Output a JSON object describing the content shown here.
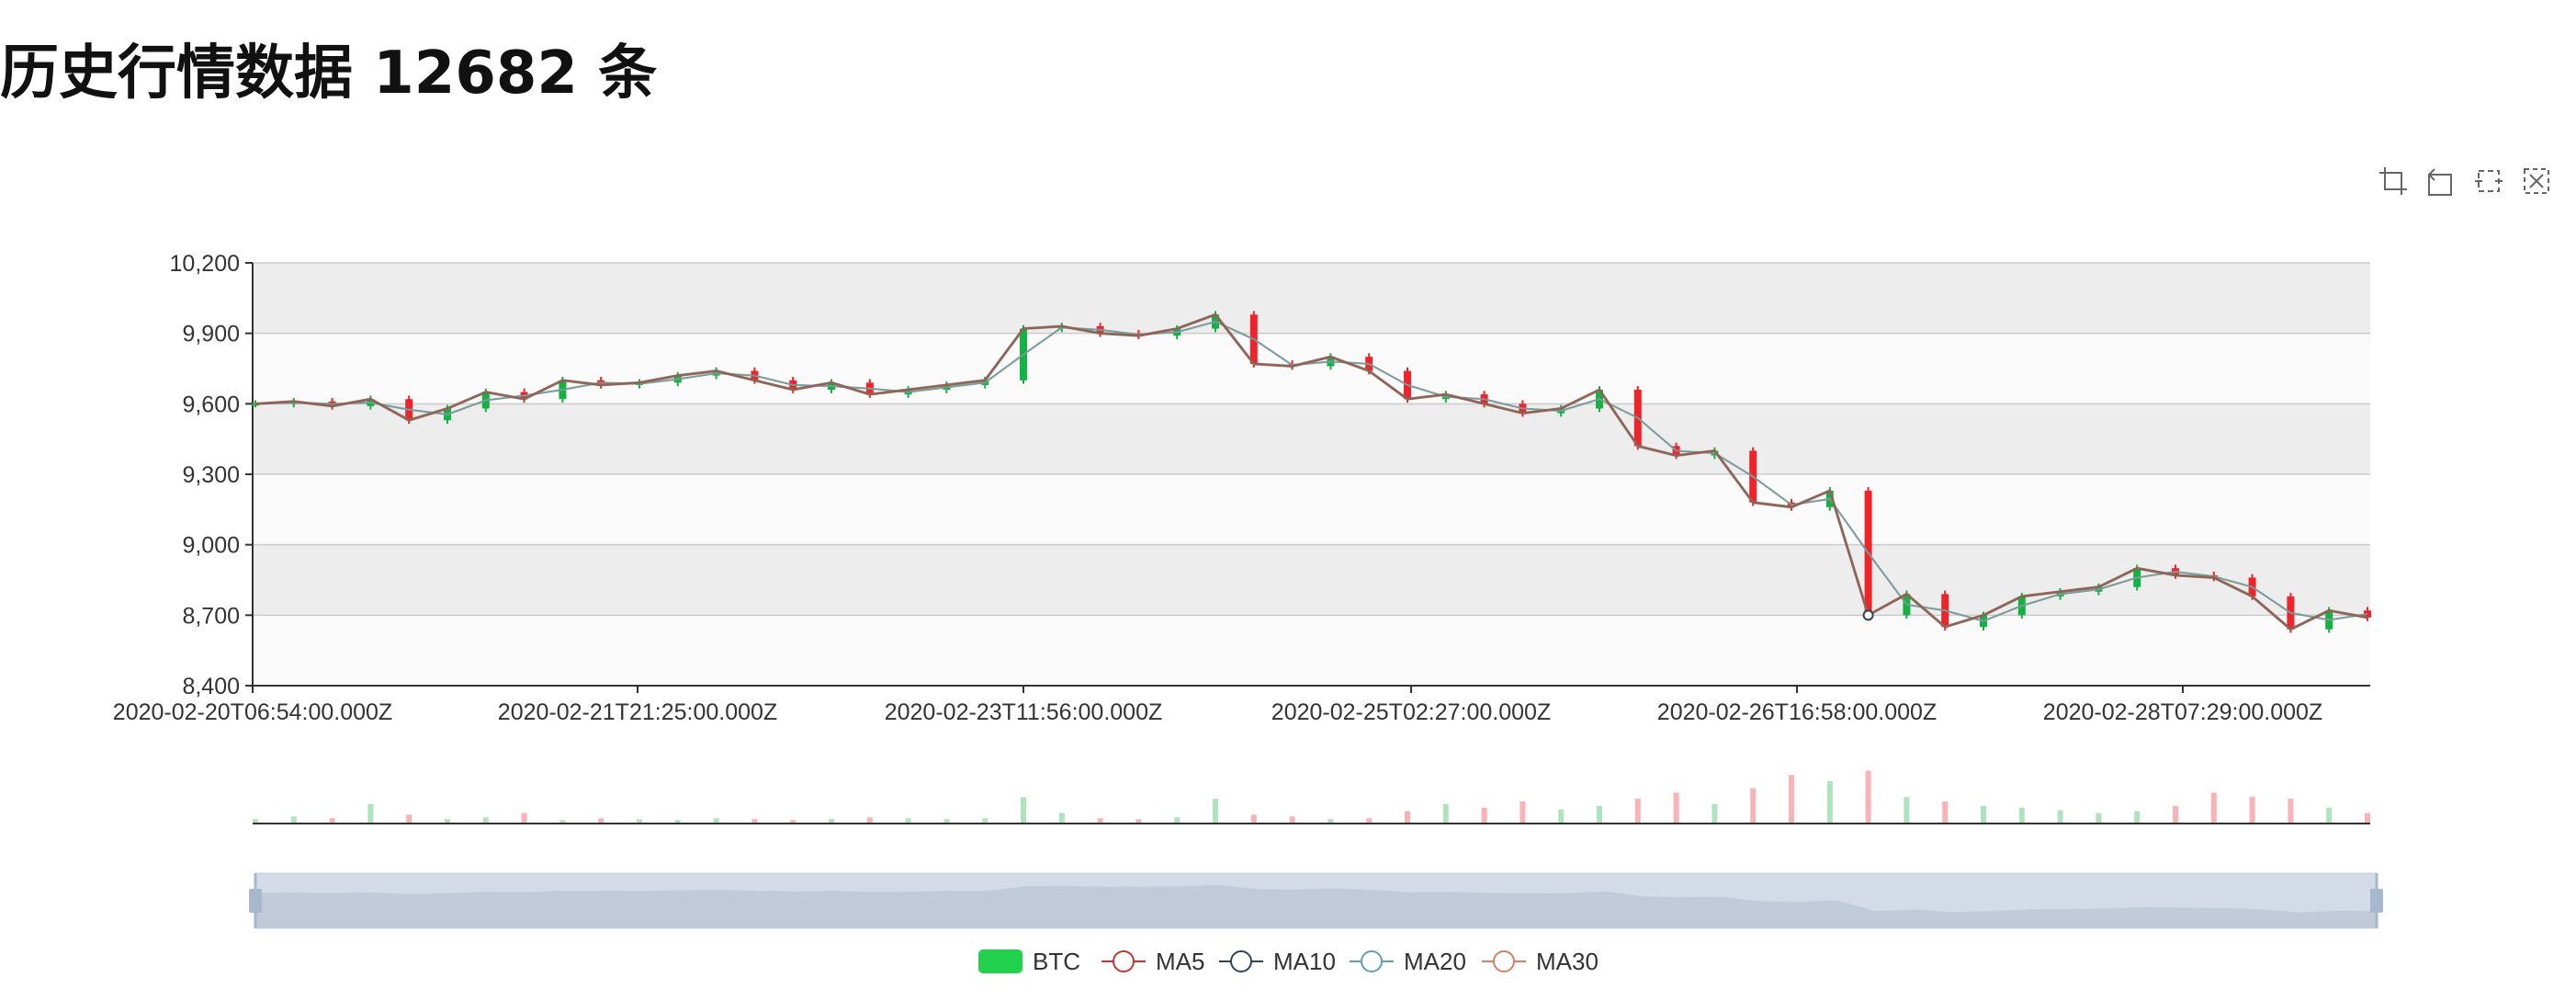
{
  "page": {
    "title": "历史行情数据 12682 条"
  },
  "toolbox": [
    {
      "name": "zoom-icon",
      "tip": "区域缩放"
    },
    {
      "name": "zoom-reset-icon",
      "tip": "区域缩放还原"
    },
    {
      "name": "restore-icon",
      "tip": "还原"
    },
    {
      "name": "brush-clear-icon",
      "tip": "清除选择"
    }
  ],
  "colors": {
    "up": "#14b143",
    "down": "#ef232a",
    "bg_band": "#ededed",
    "bg_band_alt": "#fafafa",
    "grid_line": "#cccccc",
    "price_line": "#8a6a5a",
    "dataZoom_fill": "#d2dbe7",
    "dataZoom_handle": "#a7b7cc",
    "btc_legend": "#22d14d",
    "ma5": "#c23531",
    "ma10": "#2f4554",
    "ma20": "#61a0a8",
    "ma30": "#d48265"
  },
  "chart_data": {
    "type": "candlestick",
    "title": "",
    "ylim": [
      8400,
      10200
    ],
    "yticks": [
      "10,200",
      "9,900",
      "9,600",
      "9,300",
      "9,000",
      "8,700",
      "8,400"
    ],
    "ytick_values": [
      10200,
      9900,
      9600,
      9300,
      9000,
      8700,
      8400
    ],
    "xtick_labels": [
      "2020-02-20T06:54:00.000Z",
      "2020-02-21T21:25:00.000Z",
      "2020-02-23T11:56:00.000Z",
      "2020-02-25T02:27:00.000Z",
      "2020-02-26T16:58:00.000Z",
      "2020-02-28T07:29:00.000Z"
    ],
    "grid": true,
    "legend_position": "bottom-center",
    "legend": [
      "BTC",
      "MA5",
      "MA10",
      "MA20",
      "MA30"
    ],
    "x": [
      "2020-02-20T06:54",
      "2020-02-20T10:00",
      "2020-02-20T14:00",
      "2020-02-20T18:00",
      "2020-02-20T22:00",
      "2020-02-21T02:00",
      "2020-02-21T06:00",
      "2020-02-21T10:00",
      "2020-02-21T14:00",
      "2020-02-21T18:00",
      "2020-02-21T21:25",
      "2020-02-22T02:00",
      "2020-02-22T06:00",
      "2020-02-22T10:00",
      "2020-02-22T14:00",
      "2020-02-22T18:00",
      "2020-02-22T22:00",
      "2020-02-23T02:00",
      "2020-02-23T06:00",
      "2020-02-23T08:30",
      "2020-02-23T11:56",
      "2020-02-23T16:00",
      "2020-02-23T20:00",
      "2020-02-24T00:00",
      "2020-02-24T04:00",
      "2020-02-24T08:00",
      "2020-02-24T12:00",
      "2020-02-24T16:00",
      "2020-02-24T20:00",
      "2020-02-25T00:00",
      "2020-02-25T02:27",
      "2020-02-25T06:00",
      "2020-02-25T10:00",
      "2020-02-25T14:00",
      "2020-02-25T18:00",
      "2020-02-25T22:00",
      "2020-02-26T02:00",
      "2020-02-26T06:00",
      "2020-02-26T10:00",
      "2020-02-26T14:00",
      "2020-02-26T16:58",
      "2020-02-26T20:00",
      "2020-02-27T00:00",
      "2020-02-27T04:00",
      "2020-02-27T08:00",
      "2020-02-27T12:00",
      "2020-02-27T16:00",
      "2020-02-27T20:00",
      "2020-02-28T00:00",
      "2020-02-28T04:00",
      "2020-02-28T07:29",
      "2020-02-28T12:00",
      "2020-02-28T16:00",
      "2020-02-28T20:00",
      "2020-02-29T00:00",
      "2020-02-29T04:00"
    ],
    "close": [
      9600,
      9610,
      9590,
      9620,
      9530,
      9580,
      9650,
      9620,
      9700,
      9680,
      9690,
      9720,
      9740,
      9700,
      9660,
      9690,
      9640,
      9660,
      9680,
      9700,
      9920,
      9930,
      9900,
      9890,
      9920,
      9980,
      9770,
      9760,
      9800,
      9740,
      9620,
      9640,
      9600,
      9560,
      9580,
      9660,
      9420,
      9380,
      9400,
      9180,
      9160,
      9230,
      8700,
      8790,
      8650,
      8700,
      8780,
      8800,
      8820,
      8900,
      8870,
      8860,
      8780,
      8640,
      8720,
      8690
    ],
    "volume": [
      0.05,
      0.08,
      0.06,
      0.22,
      0.1,
      0.05,
      0.07,
      0.12,
      0.04,
      0.06,
      0.05,
      0.04,
      0.06,
      0.05,
      0.04,
      0.05,
      0.07,
      0.06,
      0.05,
      0.06,
      0.3,
      0.12,
      0.06,
      0.05,
      0.07,
      0.28,
      0.1,
      0.08,
      0.05,
      0.06,
      0.14,
      0.22,
      0.18,
      0.25,
      0.16,
      0.2,
      0.28,
      0.35,
      0.22,
      0.4,
      0.55,
      0.48,
      0.6,
      0.3,
      0.25,
      0.2,
      0.18,
      0.15,
      0.12,
      0.14,
      0.2,
      0.35,
      0.3,
      0.28,
      0.18,
      0.12
    ]
  }
}
